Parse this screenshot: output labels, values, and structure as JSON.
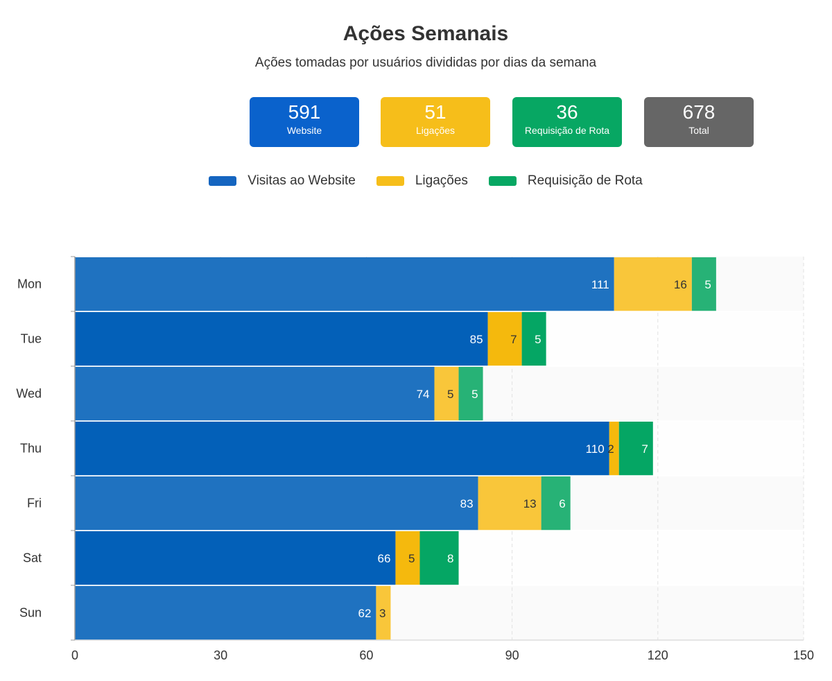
{
  "header": {
    "title": "Ações Semanais",
    "subtitle": "Ações tomadas por usuários divididas por dias da semana"
  },
  "cards": [
    {
      "value": "591",
      "label": "Website",
      "color": "#0a62cc"
    },
    {
      "value": "51",
      "label": "Ligações",
      "color": "#f6be1a"
    },
    {
      "value": "36",
      "label": "Requisição de Rota",
      "color": "#07a763"
    },
    {
      "value": "678",
      "label": "Total",
      "color": "#666666"
    }
  ],
  "legend": [
    {
      "label": "Visitas ao Website",
      "color": "#1565c0"
    },
    {
      "label": "Ligações",
      "color": "#f6be1a"
    },
    {
      "label": "Requisição de Rota",
      "color": "#07a763"
    }
  ],
  "chart_data": {
    "type": "bar",
    "orientation": "horizontal",
    "stacked": true,
    "categories": [
      "Mon",
      "Tue",
      "Wed",
      "Thu",
      "Fri",
      "Sat",
      "Sun"
    ],
    "series": [
      {
        "name": "Visitas ao Website",
        "values": [
          111,
          85,
          74,
          110,
          83,
          66,
          62
        ],
        "color": "#1f72c0",
        "alt_color": "#0360b8",
        "label_color": "#ffffff"
      },
      {
        "name": "Ligações",
        "values": [
          16,
          7,
          5,
          2,
          13,
          5,
          3
        ],
        "color": "#f9c63a",
        "alt_color": "#f5b90d",
        "label_color": "#333333"
      },
      {
        "name": "Requisição de Rota",
        "values": [
          5,
          5,
          5,
          7,
          6,
          8,
          0
        ],
        "color": "#27b276",
        "alt_color": "#05a664",
        "label_color": "#ffffff"
      }
    ],
    "xlim": [
      0,
      150
    ],
    "xticks": [
      0,
      30,
      60,
      90,
      120,
      150
    ],
    "grid": true
  }
}
